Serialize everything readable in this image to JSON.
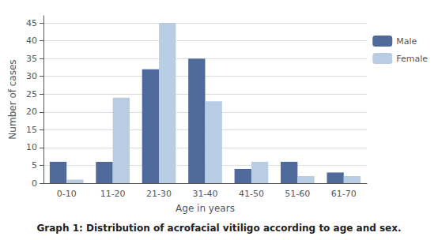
{
  "chart_data": {
    "type": "bar",
    "title": "Graph 1: Distribution of acrofacial vitiligo according to age and sex.",
    "xlabel": "Age in years",
    "ylabel": "Number of cases",
    "categories": [
      "0-10",
      "11-20",
      "21-30",
      "31-40",
      "41-50",
      "51-60",
      "61-70"
    ],
    "series": [
      {
        "name": "Male",
        "color": "#4f6a9a",
        "values": [
          6,
          6,
          32,
          35,
          4,
          6,
          3
        ]
      },
      {
        "name": "Female",
        "color": "#b8cce4",
        "values": [
          1,
          24,
          45,
          23,
          6,
          2,
          2
        ]
      }
    ],
    "ylim": [
      0,
      47
    ],
    "yticks": [
      0,
      5,
      10,
      15,
      20,
      25,
      30,
      35,
      40,
      45
    ],
    "grid": true,
    "legend": "right"
  }
}
